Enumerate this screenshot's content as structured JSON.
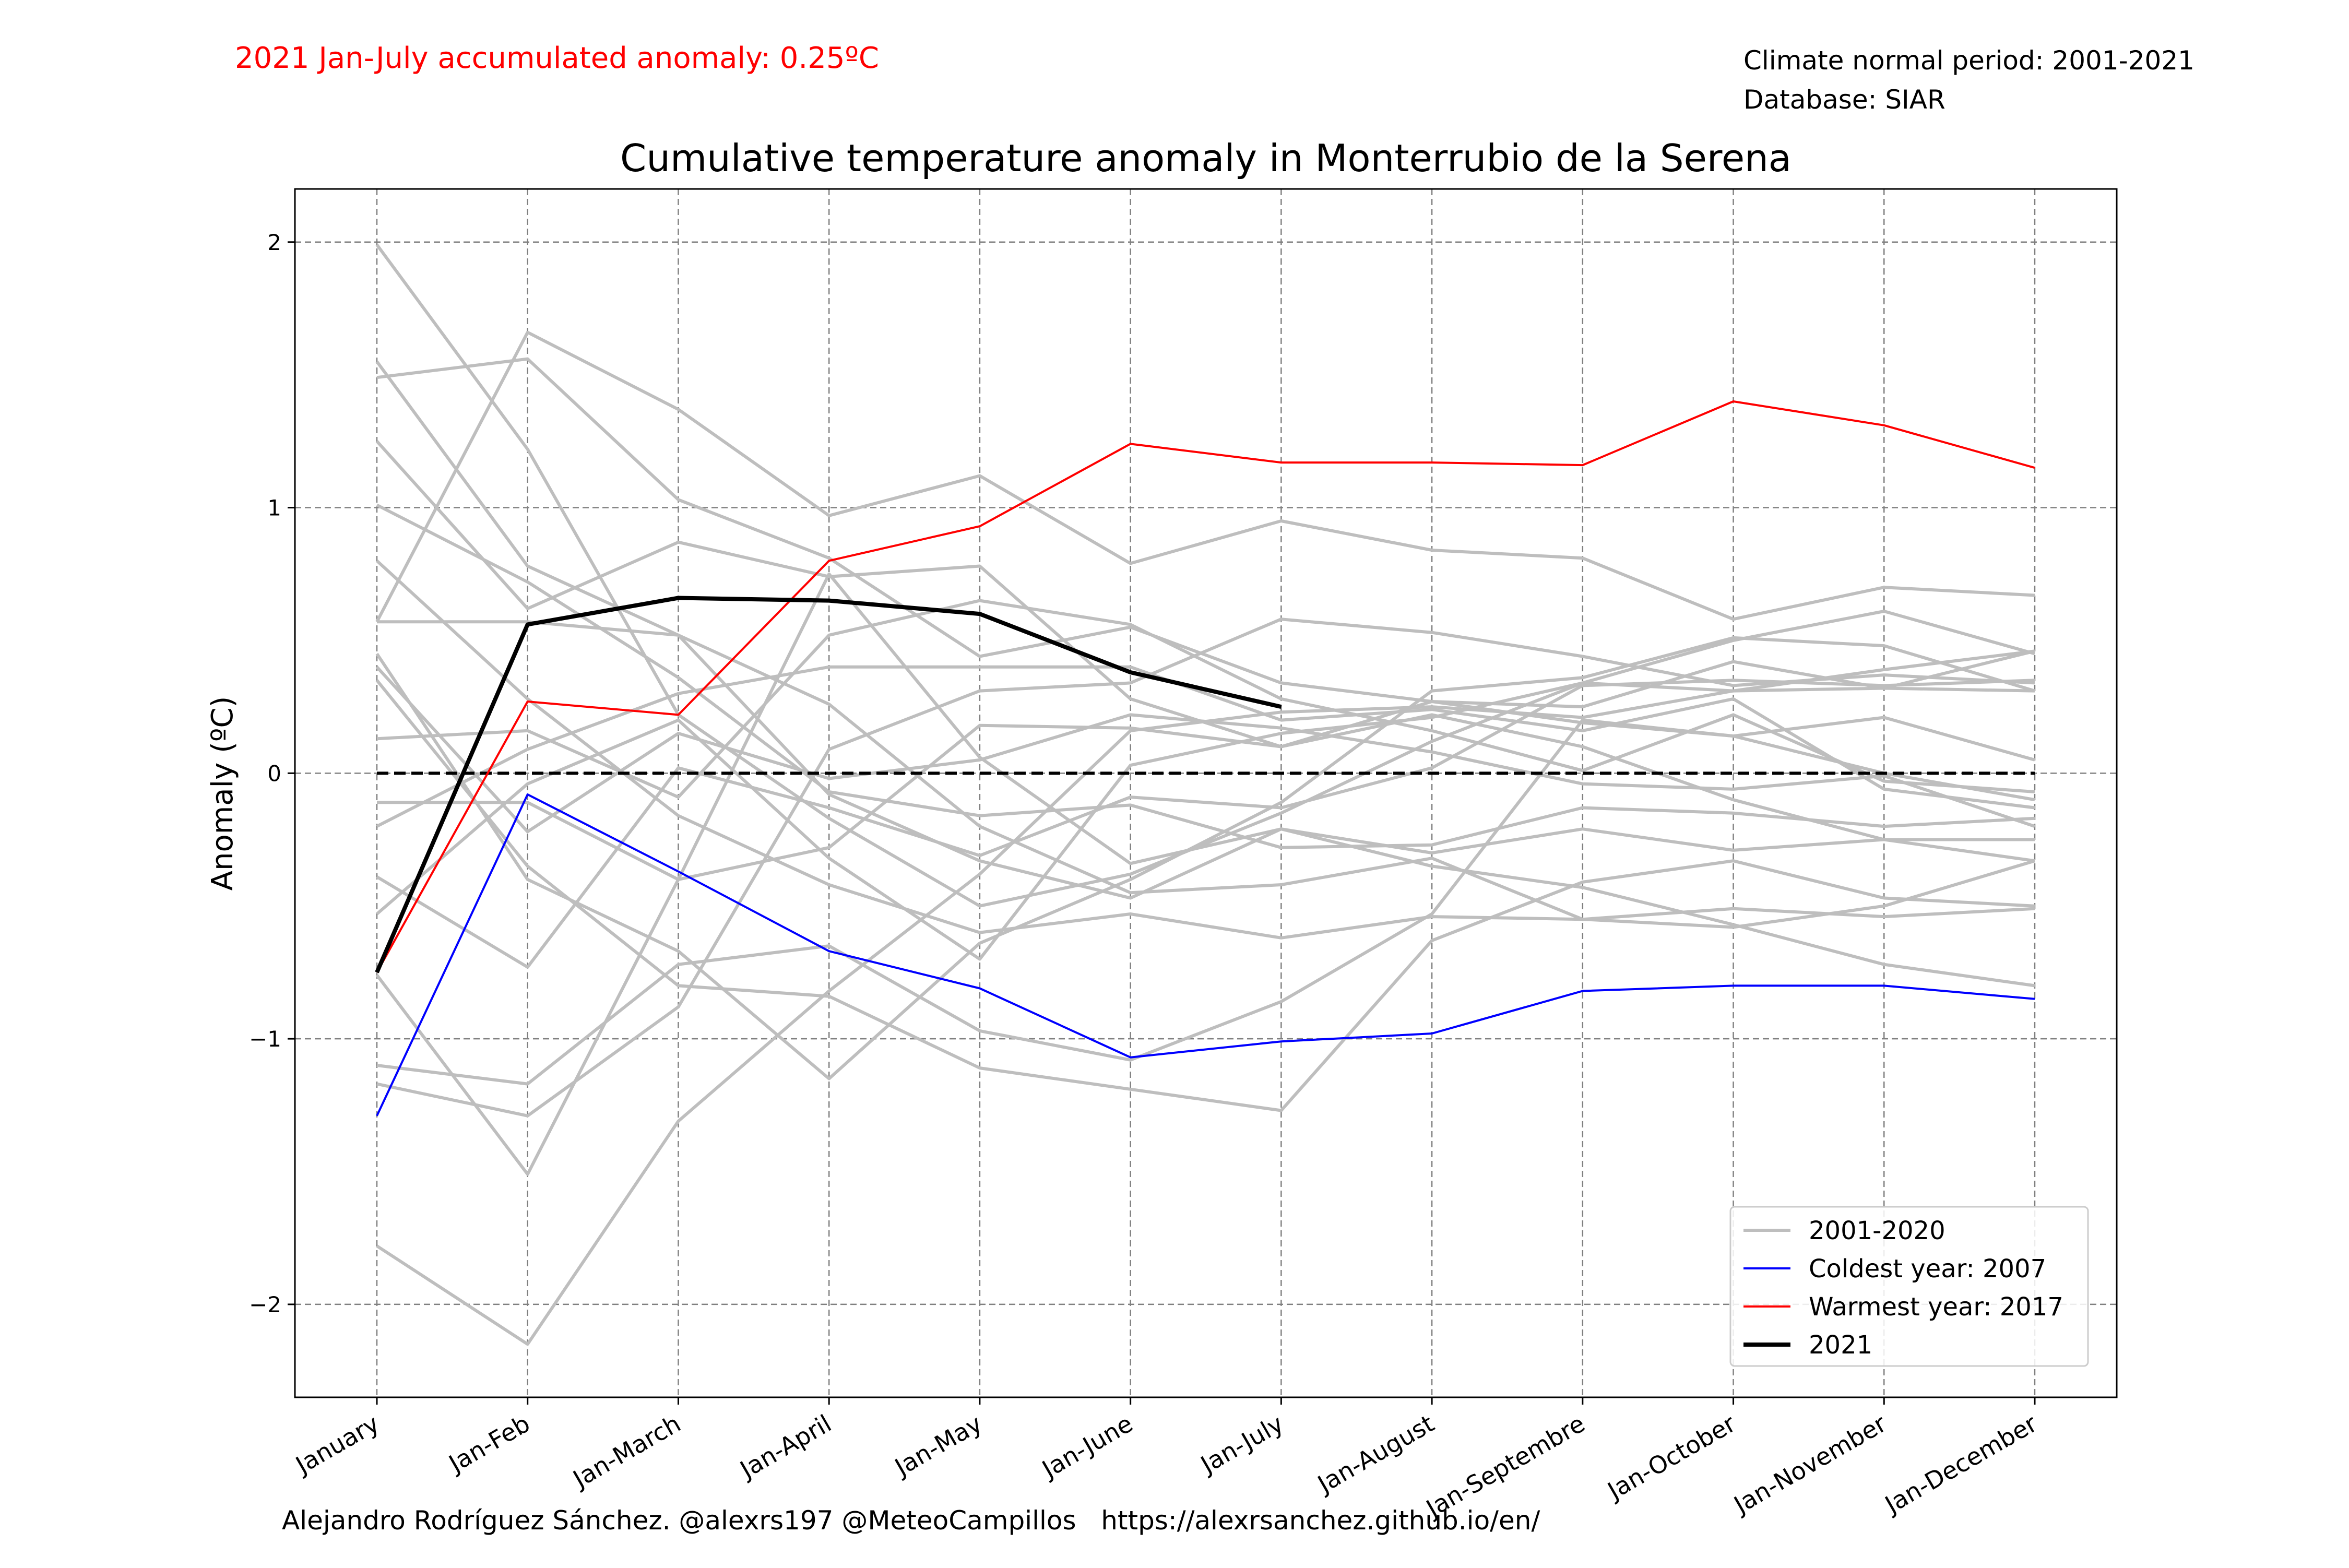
{
  "header": {
    "accumulated_anomaly": "2021 Jan-July accumulated anomaly: 0.25ºC",
    "normal_period": "Climate normal period: 2001-2021",
    "database": "Database: SIAR"
  },
  "footer": {
    "credit": "Alejandro Rodríguez Sánchez. @alexrs197 @MeteoCampillos   https://alexrsanchez.github.io/en/"
  },
  "colors": {
    "background_series": "#bebebe",
    "coldest": "#0000ff",
    "warmest": "#ff0000",
    "current": "#000000",
    "header_highlight": "#ff0000",
    "grid": "#808080"
  },
  "chart_data": {
    "type": "line",
    "title": "Cumulative temperature anomaly in Monterrubio de la Serena",
    "xlabel": "",
    "ylabel": "Anomaly (ºC)",
    "ylim": [
      -2.35,
      2.2
    ],
    "yticks": [
      2,
      1,
      0,
      -1,
      -2
    ],
    "ytick_labels": [
      "2",
      "1",
      "0",
      "−1",
      "−2"
    ],
    "grid": true,
    "legend_position": "bottom-right",
    "categories": [
      "January",
      "Jan-Feb",
      "Jan-March",
      "Jan-April",
      "Jan-May",
      "Jan-June",
      "Jan-July",
      "Jan-August",
      "Jan-Septembre",
      "Jan-October",
      "Jan-November",
      "Jan-December"
    ],
    "zero_line": 0,
    "legend": [
      {
        "label": "2001-2020",
        "style": "background"
      },
      {
        "label": "Coldest year: 2007",
        "style": "coldest"
      },
      {
        "label": "Warmest year: 2017",
        "style": "warmest"
      },
      {
        "label": "2021",
        "style": "current"
      }
    ],
    "background_series": [
      [
        1.99,
        1.22,
        0.22,
        -0.17,
        -0.5,
        -0.38,
        -0.15,
        0.12,
        0.34,
        0.5,
        0.61,
        0.45
      ],
      [
        1.55,
        0.78,
        0.52,
        0.26,
        -0.2,
        -0.45,
        -0.42,
        -0.32,
        -0.55,
        -0.58,
        -0.5,
        -0.33
      ],
      [
        1.49,
        1.56,
        1.03,
        0.81,
        0.44,
        0.55,
        0.34,
        0.27,
        0.19,
        0.14,
        0.21,
        0.05
      ],
      [
        1.25,
        0.62,
        0.87,
        0.74,
        0.78,
        0.28,
        0.1,
        0.27,
        0.25,
        0.42,
        0.32,
        0.46
      ],
      [
        1.01,
        0.72,
        0.36,
        -0.07,
        -0.16,
        -0.12,
        -0.28,
        -0.27,
        -0.13,
        -0.15,
        -0.2,
        -0.17
      ],
      [
        0.57,
        1.66,
        1.37,
        0.97,
        1.12,
        0.79,
        0.95,
        0.84,
        0.81,
        0.58,
        0.7,
        0.67
      ],
      [
        0.57,
        0.57,
        0.52,
        -0.08,
        -0.33,
        -0.47,
        -0.21,
        -0.3,
        -0.21,
        -0.29,
        -0.25,
        -0.25
      ],
      [
        0.45,
        -0.4,
        -0.67,
        -1.15,
        -0.64,
        -0.4,
        -0.11,
        0.31,
        0.36,
        0.51,
        0.48,
        0.31
      ],
      [
        0.35,
        -0.35,
        -0.8,
        -0.84,
        -1.11,
        -1.19,
        -1.27,
        -0.63,
        -0.41,
        -0.33,
        -0.47,
        -0.5
      ],
      [
        0.13,
        0.16,
        -0.09,
        0.52,
        0.65,
        0.56,
        0.28,
        0.16,
        0.01,
        0.22,
        -0.03,
        -0.07
      ],
      [
        -0.11,
        -0.11,
        -0.4,
        -0.28,
        0.18,
        0.17,
        0.1,
        0.22,
        0.1,
        -0.1,
        -0.25,
        -0.33
      ],
      [
        -0.39,
        -0.73,
        0.02,
        -0.13,
        -0.31,
        -0.09,
        -0.13,
        0.02,
        0.33,
        0.35,
        0.33,
        0.35
      ],
      [
        -0.53,
        -0.04,
        0.2,
        -0.32,
        -0.7,
        0.03,
        0.15,
        0.21,
        0.34,
        0.31,
        0.39,
        0.46
      ],
      [
        -0.76,
        -1.51,
        -0.4,
        0.75,
        0.06,
        -0.34,
        -0.21,
        -0.35,
        -0.43,
        -0.57,
        -0.72,
        -0.8
      ],
      [
        -1.1,
        -1.17,
        -0.72,
        -0.65,
        -0.97,
        -1.08,
        -0.86,
        -0.53,
        0.2,
        0.14,
        0.0,
        -0.1
      ],
      [
        -1.17,
        -1.29,
        -0.88,
        0.09,
        0.31,
        0.34,
        0.58,
        0.53,
        0.44,
        0.33,
        0.37,
        0.34
      ],
      [
        -1.78,
        -2.15,
        -1.31,
        -0.82,
        -0.38,
        0.16,
        0.23,
        0.25,
        0.21,
        0.31,
        0.32,
        0.31
      ],
      [
        0.4,
        -0.22,
        0.15,
        -0.02,
        0.05,
        0.22,
        0.17,
        0.08,
        -0.04,
        -0.06,
        -0.01,
        -0.2
      ],
      [
        -0.2,
        0.09,
        0.3,
        0.4,
        0.4,
        0.4,
        0.2,
        0.24,
        0.16,
        0.28,
        -0.06,
        -0.13
      ],
      [
        0.8,
        0.28,
        -0.16,
        -0.42,
        -0.6,
        -0.53,
        -0.62,
        -0.54,
        -0.55,
        -0.51,
        -0.54,
        -0.51
      ]
    ],
    "series": [
      {
        "name": "Coldest year: 2007",
        "style": "coldest",
        "values": [
          -1.29,
          -0.08,
          -0.37,
          -0.67,
          -0.81,
          -1.07,
          -1.01,
          -0.98,
          -0.82,
          -0.8,
          -0.8,
          -0.85
        ]
      },
      {
        "name": "Warmest year: 2017",
        "style": "warmest",
        "values": [
          -0.75,
          0.27,
          0.22,
          0.8,
          0.93,
          1.24,
          1.17,
          1.17,
          1.16,
          1.4,
          1.31,
          1.15
        ]
      },
      {
        "name": "2021",
        "style": "current",
        "values": [
          -0.75,
          0.56,
          0.66,
          0.65,
          0.6,
          0.38,
          0.25,
          null,
          null,
          null,
          null,
          null
        ]
      }
    ]
  }
}
